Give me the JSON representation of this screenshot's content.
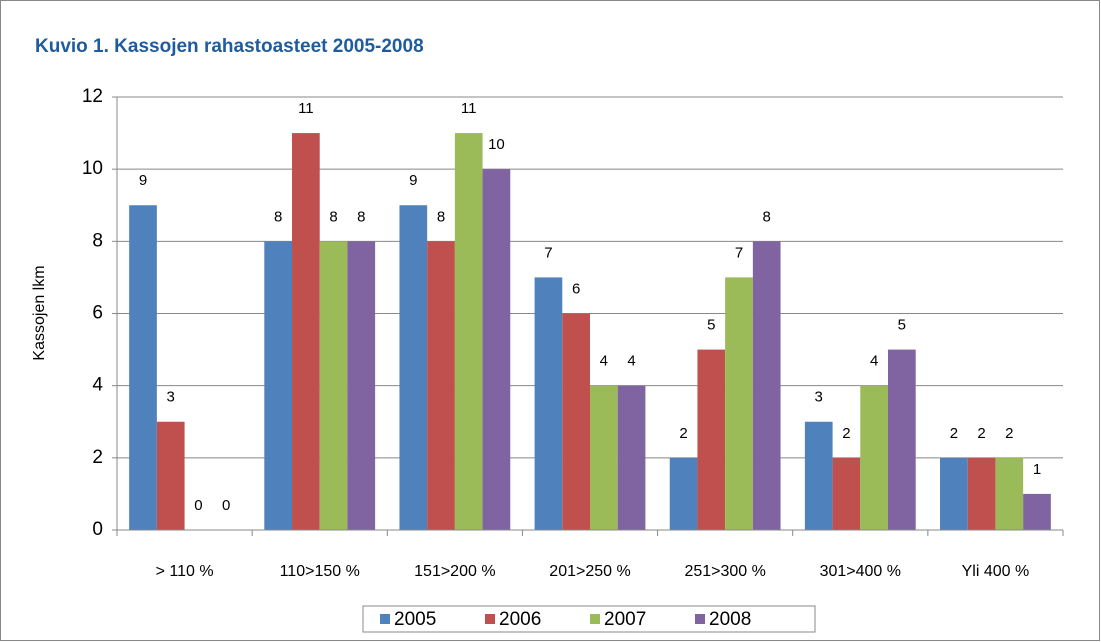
{
  "chart_data": {
    "type": "bar",
    "title": "Kuvio 1. Kassojen  rahastoasteet  2005-2008",
    "y_label": "Kassojen lkm",
    "categories": [
      "> 110 %",
      "110>150 %",
      "151>200 %",
      "201>250 %",
      "251>300 %",
      "301>400 %",
      "Yli 400 %"
    ],
    "series": [
      {
        "name": "2005",
        "color": "#4f81bd",
        "values": [
          9,
          8,
          9,
          7,
          2,
          3,
          2
        ]
      },
      {
        "name": "2006",
        "color": "#c0504d",
        "values": [
          3,
          11,
          8,
          6,
          5,
          2,
          2
        ]
      },
      {
        "name": "2007",
        "color": "#9bbb59",
        "values": [
          0,
          8,
          11,
          4,
          7,
          4,
          2
        ]
      },
      {
        "name": "2008",
        "color": "#8064a2",
        "values": [
          0,
          8,
          10,
          4,
          8,
          5,
          1
        ]
      }
    ],
    "ylim": [
      0,
      12
    ],
    "yticks": [
      0,
      2,
      4,
      6,
      8,
      10,
      12
    ],
    "grid": true,
    "legend": "bottom"
  }
}
